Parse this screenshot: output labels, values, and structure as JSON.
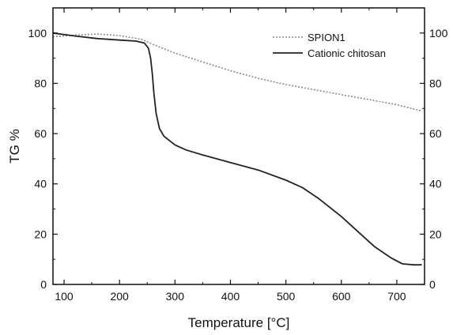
{
  "chart_data": {
    "type": "line",
    "title": "",
    "xlabel": "Temperature [°C]",
    "ylabel": "TG %",
    "xlim": [
      80,
      750
    ],
    "ylim": [
      0,
      110
    ],
    "x_ticks": [
      100,
      200,
      300,
      400,
      500,
      600,
      700
    ],
    "y_ticks": [
      0,
      20,
      40,
      60,
      80,
      100
    ],
    "right_axis_ticks": [
      0,
      20,
      40,
      60,
      80,
      100
    ],
    "grid": false,
    "legend_position": "top-right",
    "series": [
      {
        "name": "SPION1",
        "style": "dotted",
        "color": "#8a8a8a",
        "points": [
          [
            80,
            98.5
          ],
          [
            120,
            99.2
          ],
          [
            160,
            99.6
          ],
          [
            200,
            99.0
          ],
          [
            240,
            97.5
          ],
          [
            260,
            95.5
          ],
          [
            300,
            92
          ],
          [
            350,
            88.5
          ],
          [
            400,
            85
          ],
          [
            450,
            82
          ],
          [
            500,
            79.5
          ],
          [
            550,
            77.5
          ],
          [
            600,
            75.5
          ],
          [
            650,
            73.5
          ],
          [
            700,
            71.5
          ],
          [
            745,
            69
          ]
        ]
      },
      {
        "name": "Cationic chitosan",
        "style": "solid",
        "color": "#222222",
        "points": [
          [
            80,
            100
          ],
          [
            120,
            98.8
          ],
          [
            160,
            97.8
          ],
          [
            200,
            97.2
          ],
          [
            230,
            96.8
          ],
          [
            245,
            96.0
          ],
          [
            252,
            94
          ],
          [
            256,
            90
          ],
          [
            259,
            84
          ],
          [
            262,
            76
          ],
          [
            266,
            68
          ],
          [
            272,
            62
          ],
          [
            280,
            59
          ],
          [
            300,
            55.5
          ],
          [
            320,
            53.5
          ],
          [
            350,
            51.5
          ],
          [
            400,
            48.5
          ],
          [
            450,
            45.5
          ],
          [
            500,
            41.5
          ],
          [
            530,
            38.5
          ],
          [
            560,
            34
          ],
          [
            600,
            27
          ],
          [
            630,
            21
          ],
          [
            660,
            15
          ],
          [
            690,
            10.5
          ],
          [
            710,
            8.2
          ],
          [
            730,
            7.8
          ],
          [
            745,
            7.8
          ]
        ]
      }
    ]
  }
}
